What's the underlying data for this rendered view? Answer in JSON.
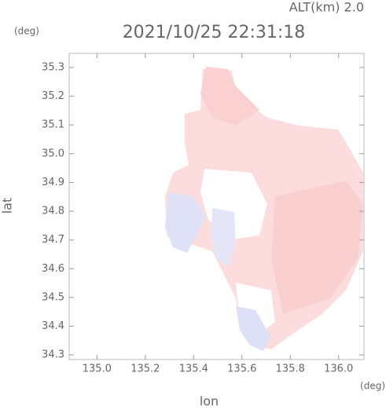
{
  "chart_data": {
    "type": "heatmap",
    "title": "2021/10/25 22:31:18",
    "altitude_label": "ALT(km) 2.0",
    "x_label": "lon",
    "y_label": "lat",
    "x_unit": "(deg)",
    "y_unit": "(deg)",
    "xlim": [
      134.885,
      136.105
    ],
    "ylim": [
      34.284,
      35.349
    ],
    "xticks": [
      {
        "value": 135,
        "label": "135.0"
      },
      135.2,
      135.4,
      135.6,
      135.8,
      {
        "value": 136,
        "label": "136.0"
      }
    ],
    "yticks": [
      34.3,
      34.4,
      34.5,
      34.6,
      34.7,
      34.8,
      34.9,
      {
        "value": 35,
        "label": "35.0"
      },
      35.1,
      35.2,
      35.3
    ]
  }
}
